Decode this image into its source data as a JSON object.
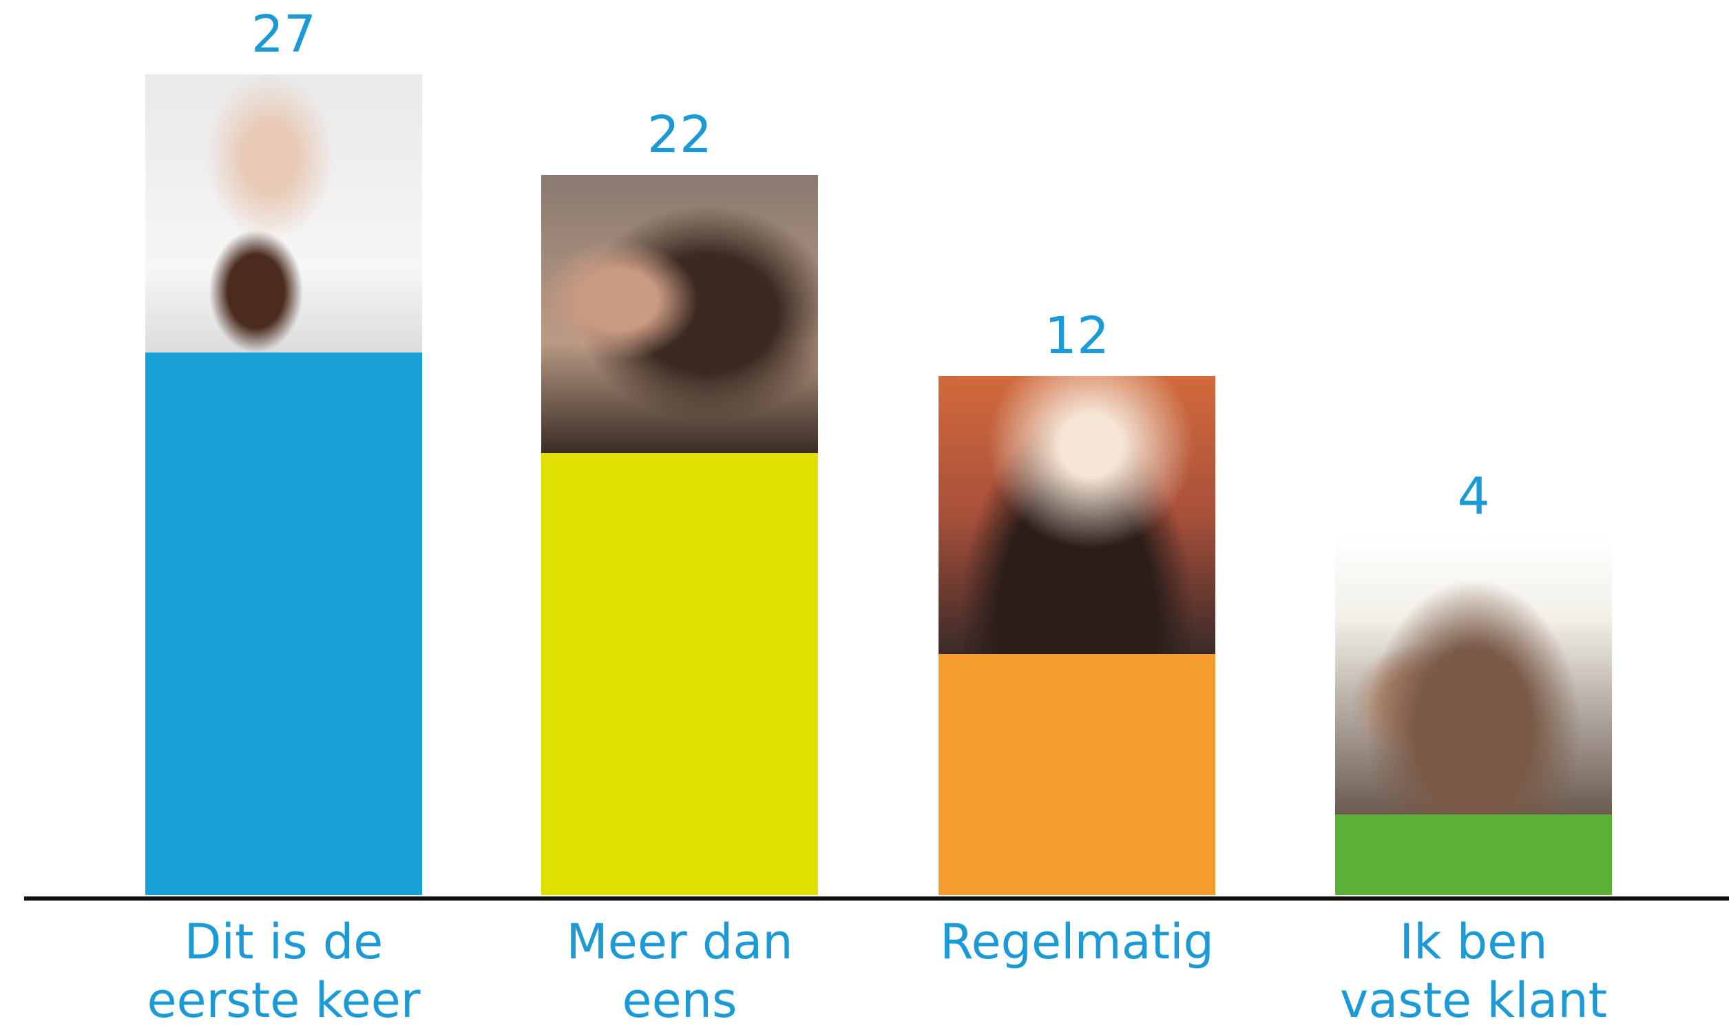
{
  "chart_data": {
    "type": "bar",
    "categories": [
      "Dit is de\neerste keer",
      "Meer dan\neens",
      "Regelmatig",
      "Ik ben\nvaste klant"
    ],
    "values": [
      27,
      22,
      12,
      4
    ],
    "colors": [
      "#179fd7",
      "#dfe000",
      "#f59c2e",
      "#5bb135"
    ]
  }
}
